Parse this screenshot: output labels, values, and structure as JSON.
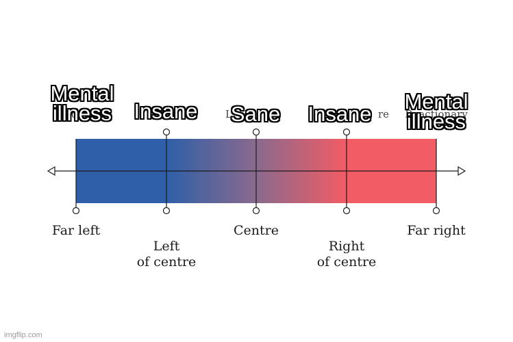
{
  "spectrum": {
    "bottom_labels": [
      "Far left",
      "Left\nof centre",
      "Centre",
      "Right\nof centre",
      "Far right"
    ],
    "under_labels": {
      "radical": "Radical",
      "faded_left": "L",
      "faded_right": "re",
      "reactionary": "Reactionary"
    },
    "colors": {
      "left": "#2e5fa8",
      "middle": "#8a6a8e",
      "right": "#f25c64",
      "axis": "#1a1a1a"
    }
  },
  "meme_captions": {
    "far_left": "Mental\nillness",
    "left_of_centre": "Insane",
    "centre": "Sane",
    "right_of_centre": "Insane",
    "far_right": "Mental\nillness"
  },
  "watermark": "imgflip.com"
}
